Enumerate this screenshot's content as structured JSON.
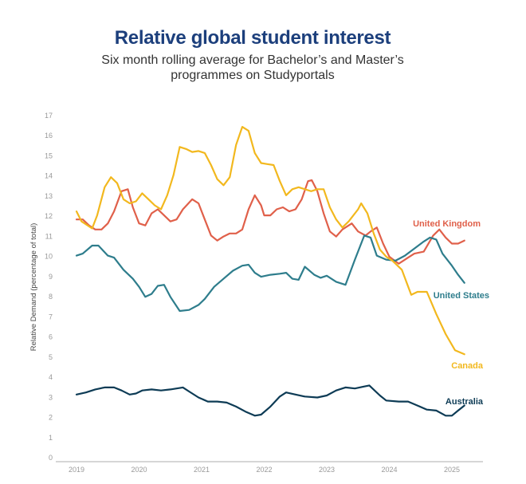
{
  "chart_data": {
    "type": "line",
    "title": "Relative global student interest",
    "subtitle": "Six month rolling average for Bachelor's and Master's programmes on Studyportals",
    "subtitle_lines": [
      "Six month rolling average for Bachelor’s and Master’s",
      "programmes on Studyportals"
    ],
    "xlabel": "",
    "ylabel": "Relative Demand (percentage of total)",
    "ylim": [
      0,
      17
    ],
    "xlim": [
      2018.8,
      2025.45
    ],
    "yticks": [
      "0",
      "1",
      "2",
      "3",
      "4",
      "5",
      "6",
      "7",
      "8",
      "9",
      "10",
      "11",
      "12",
      "13",
      "14",
      "15",
      "16",
      "17"
    ],
    "xticks": [
      "2019",
      "2020",
      "2021",
      "2022",
      "2023",
      "2024",
      "2025"
    ],
    "grid": false,
    "legend": "inline labels at line ends",
    "series": [
      {
        "name": "United Kingdom",
        "color": "#e0604a",
        "x": [
          2019.0,
          2019.1,
          2019.2,
          2019.3,
          2019.4,
          2019.5,
          2019.6,
          2019.72,
          2019.82,
          2019.9,
          2020.0,
          2020.1,
          2020.2,
          2020.3,
          2020.4,
          2020.5,
          2020.6,
          2020.7,
          2020.85,
          2020.95,
          2021.05,
          2021.15,
          2021.25,
          2021.35,
          2021.45,
          2021.55,
          2021.65,
          2021.75,
          2021.85,
          2021.95,
          2022.0,
          2022.1,
          2022.2,
          2022.3,
          2022.4,
          2022.5,
          2022.6,
          2022.7,
          2022.76,
          2022.85,
          2022.95,
          2023.05,
          2023.15,
          2023.25,
          2023.4,
          2023.5,
          2023.62,
          2023.7,
          2023.8,
          2023.9,
          2024.0,
          2024.15,
          2024.3,
          2024.4,
          2024.55,
          2024.7,
          2024.8,
          2024.9,
          2025.0,
          2025.1,
          2025.2
        ],
        "y": [
          11.8,
          11.8,
          11.5,
          11.3,
          11.3,
          11.6,
          12.2,
          13.2,
          13.3,
          12.4,
          11.6,
          11.5,
          12.1,
          12.3,
          12.0,
          11.7,
          11.8,
          12.3,
          12.8,
          12.6,
          11.8,
          11.0,
          10.75,
          10.95,
          11.1,
          11.1,
          11.3,
          12.3,
          13.0,
          12.5,
          12.0,
          12.0,
          12.3,
          12.4,
          12.2,
          12.3,
          12.8,
          13.7,
          13.75,
          13.2,
          12.1,
          11.2,
          10.95,
          11.3,
          11.6,
          11.2,
          11.0,
          11.2,
          11.4,
          10.6,
          9.95,
          9.6,
          9.9,
          10.1,
          10.2,
          11.0,
          11.3,
          10.9,
          10.6,
          10.6,
          10.75
        ]
      },
      {
        "name": "United States",
        "color": "#2e7d8c",
        "x": [
          2019.0,
          2019.1,
          2019.25,
          2019.35,
          2019.5,
          2019.6,
          2019.75,
          2019.9,
          2020.0,
          2020.1,
          2020.2,
          2020.3,
          2020.4,
          2020.5,
          2020.65,
          2020.8,
          2020.95,
          2021.05,
          2021.2,
          2021.35,
          2021.5,
          2021.65,
          2021.75,
          2021.85,
          2021.95,
          2022.1,
          2022.25,
          2022.35,
          2022.45,
          2022.55,
          2022.65,
          2022.8,
          2022.9,
          2023.0,
          2023.15,
          2023.3,
          2023.45,
          2023.6,
          2023.7,
          2023.8,
          2023.95,
          2024.1,
          2024.25,
          2024.4,
          2024.55,
          2024.65,
          2024.75,
          2024.85,
          2025.0,
          2025.1,
          2025.2
        ],
        "y": [
          10.0,
          10.1,
          10.5,
          10.5,
          10.0,
          9.9,
          9.3,
          8.85,
          8.45,
          7.95,
          8.1,
          8.5,
          8.55,
          7.95,
          7.25,
          7.3,
          7.55,
          7.85,
          8.45,
          8.85,
          9.25,
          9.5,
          9.55,
          9.15,
          8.95,
          9.05,
          9.1,
          9.15,
          8.85,
          8.8,
          9.45,
          9.05,
          8.9,
          9.0,
          8.7,
          8.55,
          9.8,
          11.0,
          10.9,
          10.0,
          9.8,
          9.75,
          10.0,
          10.35,
          10.7,
          10.9,
          10.8,
          10.1,
          9.5,
          9.05,
          8.65
        ]
      },
      {
        "name": "Canada",
        "color": "#f2b81e",
        "x": [
          2019.0,
          2019.08,
          2019.25,
          2019.33,
          2019.45,
          2019.55,
          2019.65,
          2019.75,
          2019.85,
          2019.95,
          2020.05,
          2020.15,
          2020.25,
          2020.35,
          2020.45,
          2020.55,
          2020.65,
          2020.75,
          2020.85,
          2020.95,
          2021.05,
          2021.15,
          2021.25,
          2021.35,
          2021.45,
          2021.55,
          2021.65,
          2021.75,
          2021.85,
          2021.95,
          2022.05,
          2022.15,
          2022.25,
          2022.35,
          2022.45,
          2022.55,
          2022.65,
          2022.75,
          2022.85,
          2022.95,
          2023.05,
          2023.15,
          2023.25,
          2023.35,
          2023.5,
          2023.55,
          2023.65,
          2023.75,
          2023.85,
          2023.95,
          2024.05,
          2024.2,
          2024.35,
          2024.45,
          2024.6,
          2024.75,
          2024.9,
          2025.05,
          2025.2
        ],
        "y": [
          12.2,
          11.7,
          11.35,
          12.0,
          13.4,
          13.9,
          13.6,
          12.8,
          12.6,
          12.7,
          13.1,
          12.8,
          12.5,
          12.3,
          13.0,
          14.0,
          15.4,
          15.3,
          15.15,
          15.2,
          15.1,
          14.5,
          13.8,
          13.5,
          13.9,
          15.5,
          16.4,
          16.2,
          15.1,
          14.6,
          14.55,
          14.5,
          13.7,
          13.0,
          13.3,
          13.4,
          13.3,
          13.2,
          13.3,
          13.3,
          12.4,
          11.8,
          11.4,
          11.7,
          12.3,
          12.6,
          12.1,
          11.1,
          10.3,
          9.95,
          9.75,
          9.3,
          8.05,
          8.2,
          8.2,
          7.1,
          6.1,
          5.3,
          5.1
        ]
      },
      {
        "name": "Australia",
        "color": "#0d3b55",
        "x": [
          2019.0,
          2019.15,
          2019.3,
          2019.45,
          2019.6,
          2019.72,
          2019.85,
          2019.95,
          2020.05,
          2020.2,
          2020.35,
          2020.5,
          2020.6,
          2020.7,
          2020.8,
          2020.95,
          2021.1,
          2021.25,
          2021.4,
          2021.55,
          2021.7,
          2021.85,
          2021.95,
          2022.1,
          2022.25,
          2022.35,
          2022.5,
          2022.65,
          2022.85,
          2023.0,
          2023.15,
          2023.3,
          2023.45,
          2023.6,
          2023.68,
          2023.85,
          2023.95,
          2024.15,
          2024.3,
          2024.45,
          2024.6,
          2024.75,
          2024.9,
          2025.0,
          2025.1,
          2025.2
        ],
        "y": [
          3.1,
          3.2,
          3.35,
          3.45,
          3.45,
          3.3,
          3.1,
          3.15,
          3.3,
          3.35,
          3.3,
          3.35,
          3.4,
          3.45,
          3.25,
          2.95,
          2.75,
          2.75,
          2.7,
          2.5,
          2.25,
          2.05,
          2.1,
          2.5,
          3.0,
          3.2,
          3.1,
          3.0,
          2.95,
          3.05,
          3.3,
          3.45,
          3.4,
          3.5,
          3.55,
          3.05,
          2.8,
          2.75,
          2.75,
          2.55,
          2.35,
          2.3,
          2.05,
          2.05,
          2.3,
          2.55
        ]
      }
    ]
  }
}
